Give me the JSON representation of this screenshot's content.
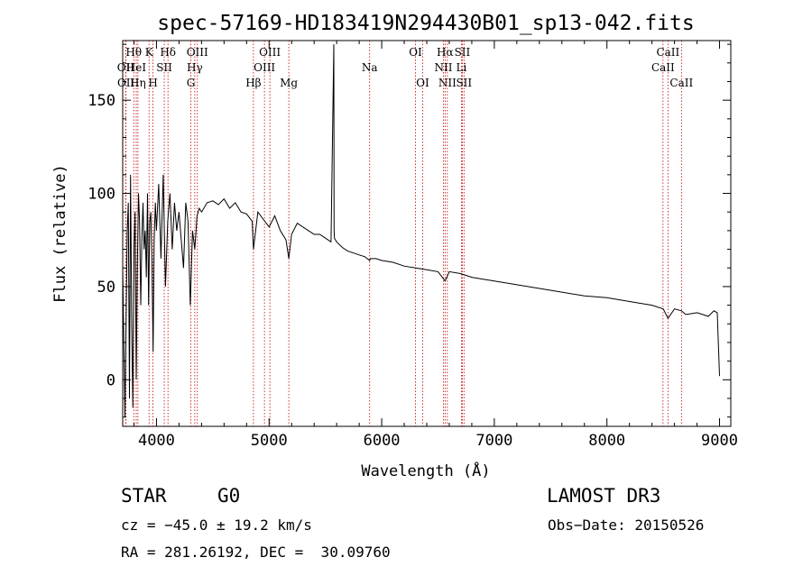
{
  "chart_data": {
    "type": "line",
    "title": "spec-57169-HD183419N294430B01_sp13-042.fits",
    "xlabel": "Wavelength (Å)",
    "ylabel": "Flux (relative)",
    "xlim": [
      3700,
      9100
    ],
    "ylim": [
      -25,
      182
    ],
    "x_ticks": [
      4000,
      5000,
      6000,
      7000,
      8000,
      9000
    ],
    "y_ticks": [
      0,
      50,
      100,
      150
    ],
    "grid": false,
    "legend": "none",
    "series": [
      {
        "name": "flux",
        "x": [
          3700,
          3720,
          3740,
          3750,
          3760,
          3770,
          3780,
          3790,
          3800,
          3810,
          3820,
          3830,
          3840,
          3850,
          3860,
          3870,
          3880,
          3890,
          3900,
          3910,
          3920,
          3930,
          3940,
          3950,
          3960,
          3970,
          3980,
          3990,
          4000,
          4020,
          4040,
          4060,
          4080,
          4100,
          4120,
          4140,
          4160,
          4180,
          4200,
          4220,
          4240,
          4260,
          4280,
          4300,
          4320,
          4340,
          4360,
          4380,
          4400,
          4450,
          4500,
          4550,
          4600,
          4650,
          4700,
          4750,
          4800,
          4850,
          4861,
          4900,
          4950,
          5000,
          5050,
          5100,
          5150,
          5175,
          5200,
          5250,
          5300,
          5350,
          5400,
          5450,
          5500,
          5550,
          5575,
          5577,
          5580,
          5600,
          5650,
          5700,
          5750,
          5800,
          5850,
          5893,
          5900,
          5950,
          6000,
          6100,
          6200,
          6300,
          6400,
          6500,
          6563,
          6600,
          6700,
          6800,
          6900,
          7000,
          7200,
          7400,
          7600,
          7800,
          8000,
          8200,
          8400,
          8500,
          8542,
          8600,
          8662,
          8700,
          8800,
          8850,
          8900,
          8950,
          8980,
          9000
        ],
        "y": [
          60,
          -20,
          80,
          95,
          -10,
          110,
          30,
          -15,
          70,
          90,
          0,
          60,
          100,
          85,
          40,
          75,
          95,
          70,
          80,
          55,
          100,
          40,
          85,
          90,
          60,
          15,
          75,
          95,
          80,
          105,
          65,
          110,
          50,
          85,
          100,
          70,
          95,
          80,
          90,
          75,
          60,
          95,
          85,
          40,
          80,
          70,
          88,
          92,
          90,
          95,
          96,
          94,
          97,
          92,
          95,
          90,
          89,
          85,
          70,
          90,
          86,
          82,
          88,
          80,
          75,
          65,
          78,
          84,
          82,
          80,
          78,
          78,
          76,
          74,
          180,
          80,
          76,
          74,
          71,
          69,
          68,
          67,
          66,
          64,
          65,
          65,
          64,
          63,
          61,
          60,
          59,
          58,
          53,
          58,
          57,
          55,
          54,
          53,
          51,
          49,
          47,
          45,
          44,
          42,
          40,
          38,
          33,
          38,
          37,
          35,
          36,
          35,
          34,
          37,
          36,
          2
        ]
      }
    ],
    "spectral_lines": [
      {
        "label": "Hθ",
        "wavelength": 3798,
        "row": 1
      },
      {
        "label": "OII",
        "wavelength": 3727,
        "row": 2
      },
      {
        "label": "OII",
        "wavelength": 3729,
        "row": 3
      },
      {
        "label": "HeI",
        "wavelength": 3820,
        "row": 2
      },
      {
        "label": "Hη",
        "wavelength": 3835,
        "row": 3
      },
      {
        "label": "K",
        "wavelength": 3934,
        "row": 1
      },
      {
        "label": "SII",
        "wavelength": 4069,
        "row": 2
      },
      {
        "label": "H",
        "wavelength": 3969,
        "row": 3
      },
      {
        "label": "Hδ",
        "wavelength": 4102,
        "row": 1
      },
      {
        "label": "OIII",
        "wavelength": 4363,
        "row": 1
      },
      {
        "label": "Hγ",
        "wavelength": 4340,
        "row": 2
      },
      {
        "label": "G",
        "wavelength": 4305,
        "row": 3
      },
      {
        "label": "OIII",
        "wavelength": 5007,
        "row": 1
      },
      {
        "label": "OIII",
        "wavelength": 4959,
        "row": 2
      },
      {
        "label": "Hβ",
        "wavelength": 4861,
        "row": 3
      },
      {
        "label": "Mg",
        "wavelength": 5175,
        "row": 3
      },
      {
        "label": "Na",
        "wavelength": 5893,
        "row": 2
      },
      {
        "label": "OI",
        "wavelength": 6300,
        "row": 1
      },
      {
        "label": "OI",
        "wavelength": 6364,
        "row": 3
      },
      {
        "label": "Hα",
        "wavelength": 6563,
        "row": 1
      },
      {
        "label": "NII",
        "wavelength": 6548,
        "row": 2
      },
      {
        "label": "NII",
        "wavelength": 6583,
        "row": 3
      },
      {
        "label": "SII",
        "wavelength": 6716,
        "row": 1
      },
      {
        "label": "Li",
        "wavelength": 6708,
        "row": 2
      },
      {
        "label": "SII",
        "wavelength": 6731,
        "row": 3
      },
      {
        "label": "CaII",
        "wavelength": 8542,
        "row": 1
      },
      {
        "label": "CaII",
        "wavelength": 8498,
        "row": 2
      },
      {
        "label": "CaII",
        "wavelength": 8662,
        "row": 3
      }
    ]
  },
  "info": {
    "object_class": "STAR",
    "subclass": "G0",
    "survey": "LAMOST DR3",
    "cz": "cz = −45.0 ± 19.2 km/s",
    "obs_date": "Obs−Date: 20150526",
    "coords": "RA = 281.26192, DEC =  30.09760"
  }
}
